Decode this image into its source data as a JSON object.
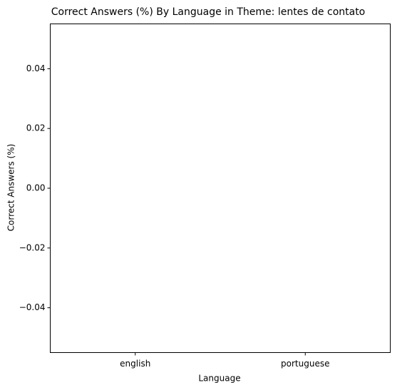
{
  "chart_data": {
    "type": "bar",
    "title": "Correct Answers (%) By Language in Theme: lentes de contato",
    "xlabel": "Language",
    "ylabel": "Correct Answers (%)",
    "categories": [
      "english",
      "portuguese"
    ],
    "values": [
      0,
      0
    ],
    "ylim": [
      -0.055,
      0.055
    ],
    "yticks": [
      {
        "value": -0.04,
        "label": "−0.04"
      },
      {
        "value": -0.02,
        "label": "−0.02"
      },
      {
        "value": 0,
        "label": "0.00"
      },
      0.02,
      0.04
    ]
  }
}
